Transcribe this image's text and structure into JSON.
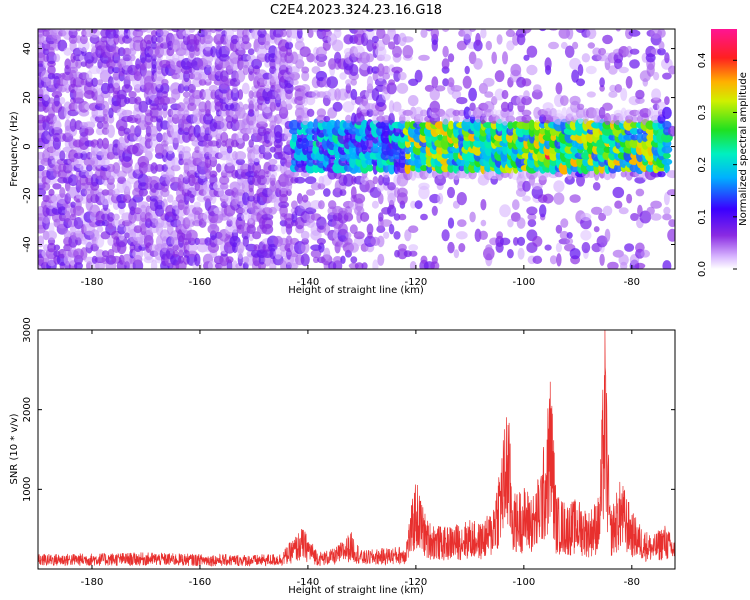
{
  "title": "C2E4.2023.324.23.16.G18",
  "colors": {
    "snr_line": "#e8302e",
    "spectrogram_background": "#ffffff"
  },
  "chart_data": [
    {
      "type": "heatmap",
      "title": "",
      "xlabel": "Height of straight line (km)",
      "ylabel": "Frequency (Hz)",
      "xlim": [
        -190,
        -72
      ],
      "ylim": [
        -50,
        48
      ],
      "x_ticks": [
        -180,
        -160,
        -140,
        -120,
        -100,
        -80
      ],
      "y_ticks": [
        -40,
        -20,
        0,
        20,
        40
      ],
      "colorbar": {
        "label": "Normalized spectral amplitude",
        "range": [
          0,
          0.46
        ],
        "ticks": [
          0.0,
          0.1,
          0.2,
          0.3,
          0.4
        ],
        "colormap": "white-violet-blue-cyan-green-yellow-red-magenta"
      },
      "description_of_values": [
        {
          "x_range": [
            -190,
            -143
          ],
          "freq_range": [
            -50,
            48
          ],
          "amplitude": 0.03
        },
        {
          "x_range": [
            -143,
            -122
          ],
          "freq_range": [
            -10,
            8
          ],
          "amplitude": 0.2
        },
        {
          "x_range": [
            -122,
            -73
          ],
          "freq_range": [
            -10,
            8
          ],
          "amplitude": 0.3
        },
        {
          "x_range": [
            -96,
            -94
          ],
          "freq_range": [
            -6,
            -2
          ],
          "amplitude": 0.42
        },
        {
          "x_range": [
            -82,
            -80
          ],
          "freq_range": [
            -2,
            2
          ],
          "amplitude": 0.42
        }
      ]
    },
    {
      "type": "line",
      "title": "",
      "xlabel": "Height of straight line (km)",
      "ylabel": "SNR (10 * v/v)",
      "xlim": [
        -190,
        -72
      ],
      "ylim": [
        0,
        3000
      ],
      "x_ticks": [
        -180,
        -160,
        -140,
        -120,
        -100,
        -80
      ],
      "y_ticks": [
        1000,
        2000,
        3000
      ],
      "series": [
        {
          "x": [
            -190,
            -180,
            -170,
            -160,
            -150,
            -145,
            -141,
            -138,
            -135,
            -132,
            -130,
            -125,
            -122,
            -120,
            -118,
            -115,
            -112,
            -110,
            -108,
            -106,
            -104,
            -103,
            -102,
            -100,
            -98,
            -96,
            -95,
            -94,
            -92,
            -90,
            -88,
            -86,
            -85,
            -84,
            -82,
            -80,
            -78,
            -76,
            -74,
            -72
          ],
          "y": [
            180,
            190,
            200,
            180,
            170,
            190,
            500,
            200,
            250,
            450,
            220,
            260,
            280,
            1100,
            600,
            500,
            550,
            600,
            550,
            700,
            1500,
            2100,
            900,
            1000,
            900,
            1600,
            2450,
            900,
            800,
            850,
            700,
            900,
            3000,
            700,
            1100,
            700,
            500,
            400,
            550,
            350
          ]
        }
      ]
    }
  ]
}
